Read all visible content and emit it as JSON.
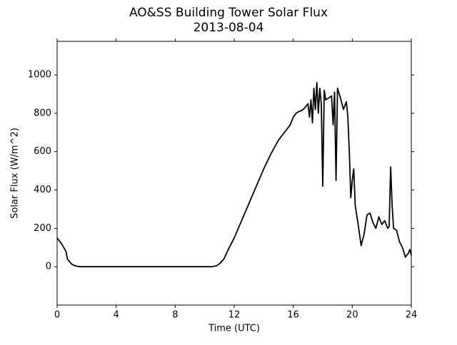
{
  "chart_data": {
    "type": "line",
    "title": "AO&SS Building Tower Solar Flux",
    "subtitle": "2013-08-04",
    "x_label": "Time (UTC)",
    "y_label": "Solar Flux (W/m^2)",
    "xlim": [
      0,
      24
    ],
    "xticks": [
      0,
      4,
      8,
      12,
      16,
      20,
      24
    ],
    "ylim": [
      -200,
      1175
    ],
    "yticks": [
      0,
      200,
      400,
      600,
      800,
      1000
    ],
    "grid": false,
    "series": [
      {
        "color": "#000000",
        "x": [
          0,
          0.3,
          0.6,
          0.7,
          0.8,
          1.0,
          1.3,
          1.6,
          2,
          4,
          6,
          8,
          10,
          10.5,
          10.8,
          11,
          11.3,
          11.6,
          12,
          12.5,
          13,
          13.5,
          14,
          14.5,
          15,
          15.5,
          15.8,
          16,
          16.2,
          16.4,
          16.6,
          16.8,
          17,
          17.1,
          17.2,
          17.3,
          17.4,
          17.5,
          17.6,
          17.7,
          17.8,
          17.9,
          18.0,
          18.1,
          18.2,
          18.4,
          18.6,
          18.7,
          18.8,
          18.9,
          19.0,
          19.2,
          19.4,
          19.6,
          19.7,
          19.8,
          19.9,
          20.0,
          20.1,
          20.2,
          20.4,
          20.6,
          20.8,
          21.0,
          21.2,
          21.4,
          21.6,
          21.8,
          22.0,
          22.2,
          22.4,
          22.5,
          22.6,
          22.7,
          22.8,
          23.0,
          23.2,
          23.4,
          23.6,
          23.8,
          23.9,
          24
        ],
        "values": [
          150,
          120,
          80,
          40,
          30,
          12,
          3,
          0,
          0,
          0,
          0,
          0,
          0,
          0,
          5,
          15,
          40,
          90,
          150,
          240,
          330,
          420,
          510,
          590,
          660,
          710,
          740,
          780,
          800,
          810,
          815,
          830,
          850,
          780,
          870,
          750,
          930,
          820,
          960,
          800,
          930,
          850,
          420,
          920,
          870,
          880,
          890,
          740,
          910,
          450,
          930,
          880,
          820,
          860,
          780,
          600,
          360,
          450,
          510,
          320,
          220,
          110,
          170,
          270,
          280,
          230,
          200,
          260,
          220,
          240,
          200,
          210,
          520,
          320,
          200,
          190,
          130,
          100,
          50,
          70,
          90,
          60
        ]
      }
    ]
  }
}
